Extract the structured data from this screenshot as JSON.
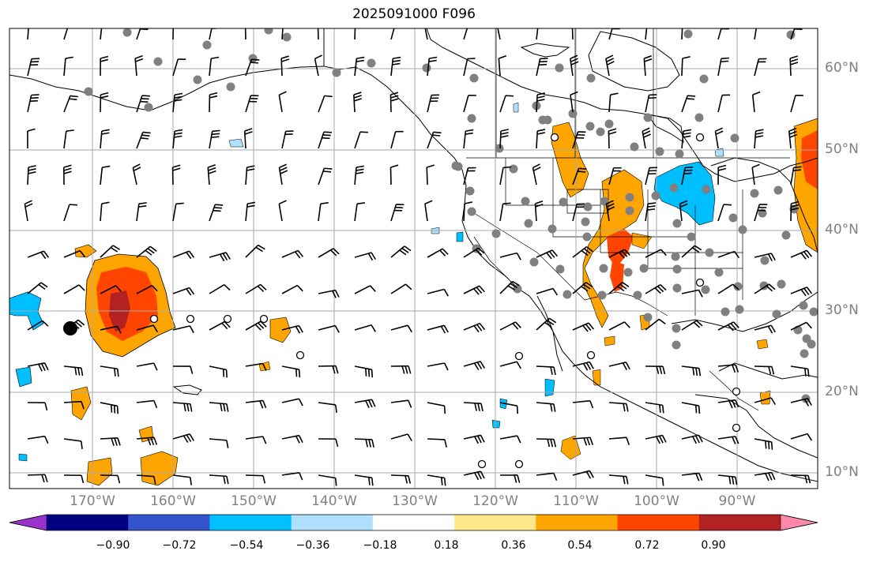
{
  "title": "2025091000 F096",
  "lat_labels": [
    "60°N",
    "50°N",
    "40°N",
    "30°N",
    "20°N",
    "10°N"
  ],
  "lon_labels": [
    "170°W",
    "160°W",
    "150°W",
    "140°W",
    "130°W",
    "120°W",
    "110°W",
    "100°W",
    "90°W"
  ],
  "colorbar": {
    "colors": [
      "#9933cc",
      "#000080",
      "#3355cc",
      "#00bfff",
      "#b0e0ff",
      "#ffffff",
      "#ffe88a",
      "#ffa500",
      "#ff4500",
      "#b22222",
      "#ff88aa"
    ],
    "labels": [
      "−0.90",
      "−0.72",
      "−0.54",
      "−0.36",
      "−0.18",
      "0.18",
      "0.36",
      "0.54",
      "0.72",
      "0.90"
    ]
  },
  "legend_colors": {
    "grid": "#a9a9a9",
    "coast": "#000000",
    "station_dot": "#808080"
  }
}
